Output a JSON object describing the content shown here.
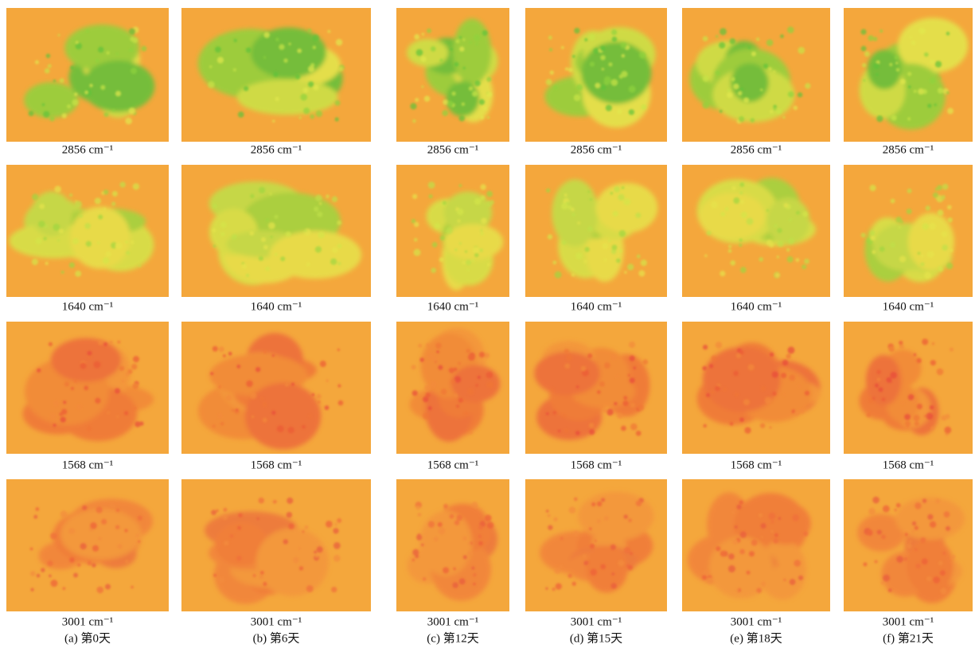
{
  "rows": [
    {
      "label": "2856 cm⁻¹"
    },
    {
      "label": "1640 cm⁻¹"
    },
    {
      "label": "1568 cm⁻¹"
    },
    {
      "label": "3001 cm⁻¹"
    }
  ],
  "columns": [
    {
      "caption": "(a) 第0天"
    },
    {
      "caption": "(b) 第6天"
    },
    {
      "caption": "(c) 第12天"
    },
    {
      "caption": "(d) 第15天"
    },
    {
      "caption": "(e) 第18天"
    },
    {
      "caption": "(f) 第21天"
    }
  ]
}
